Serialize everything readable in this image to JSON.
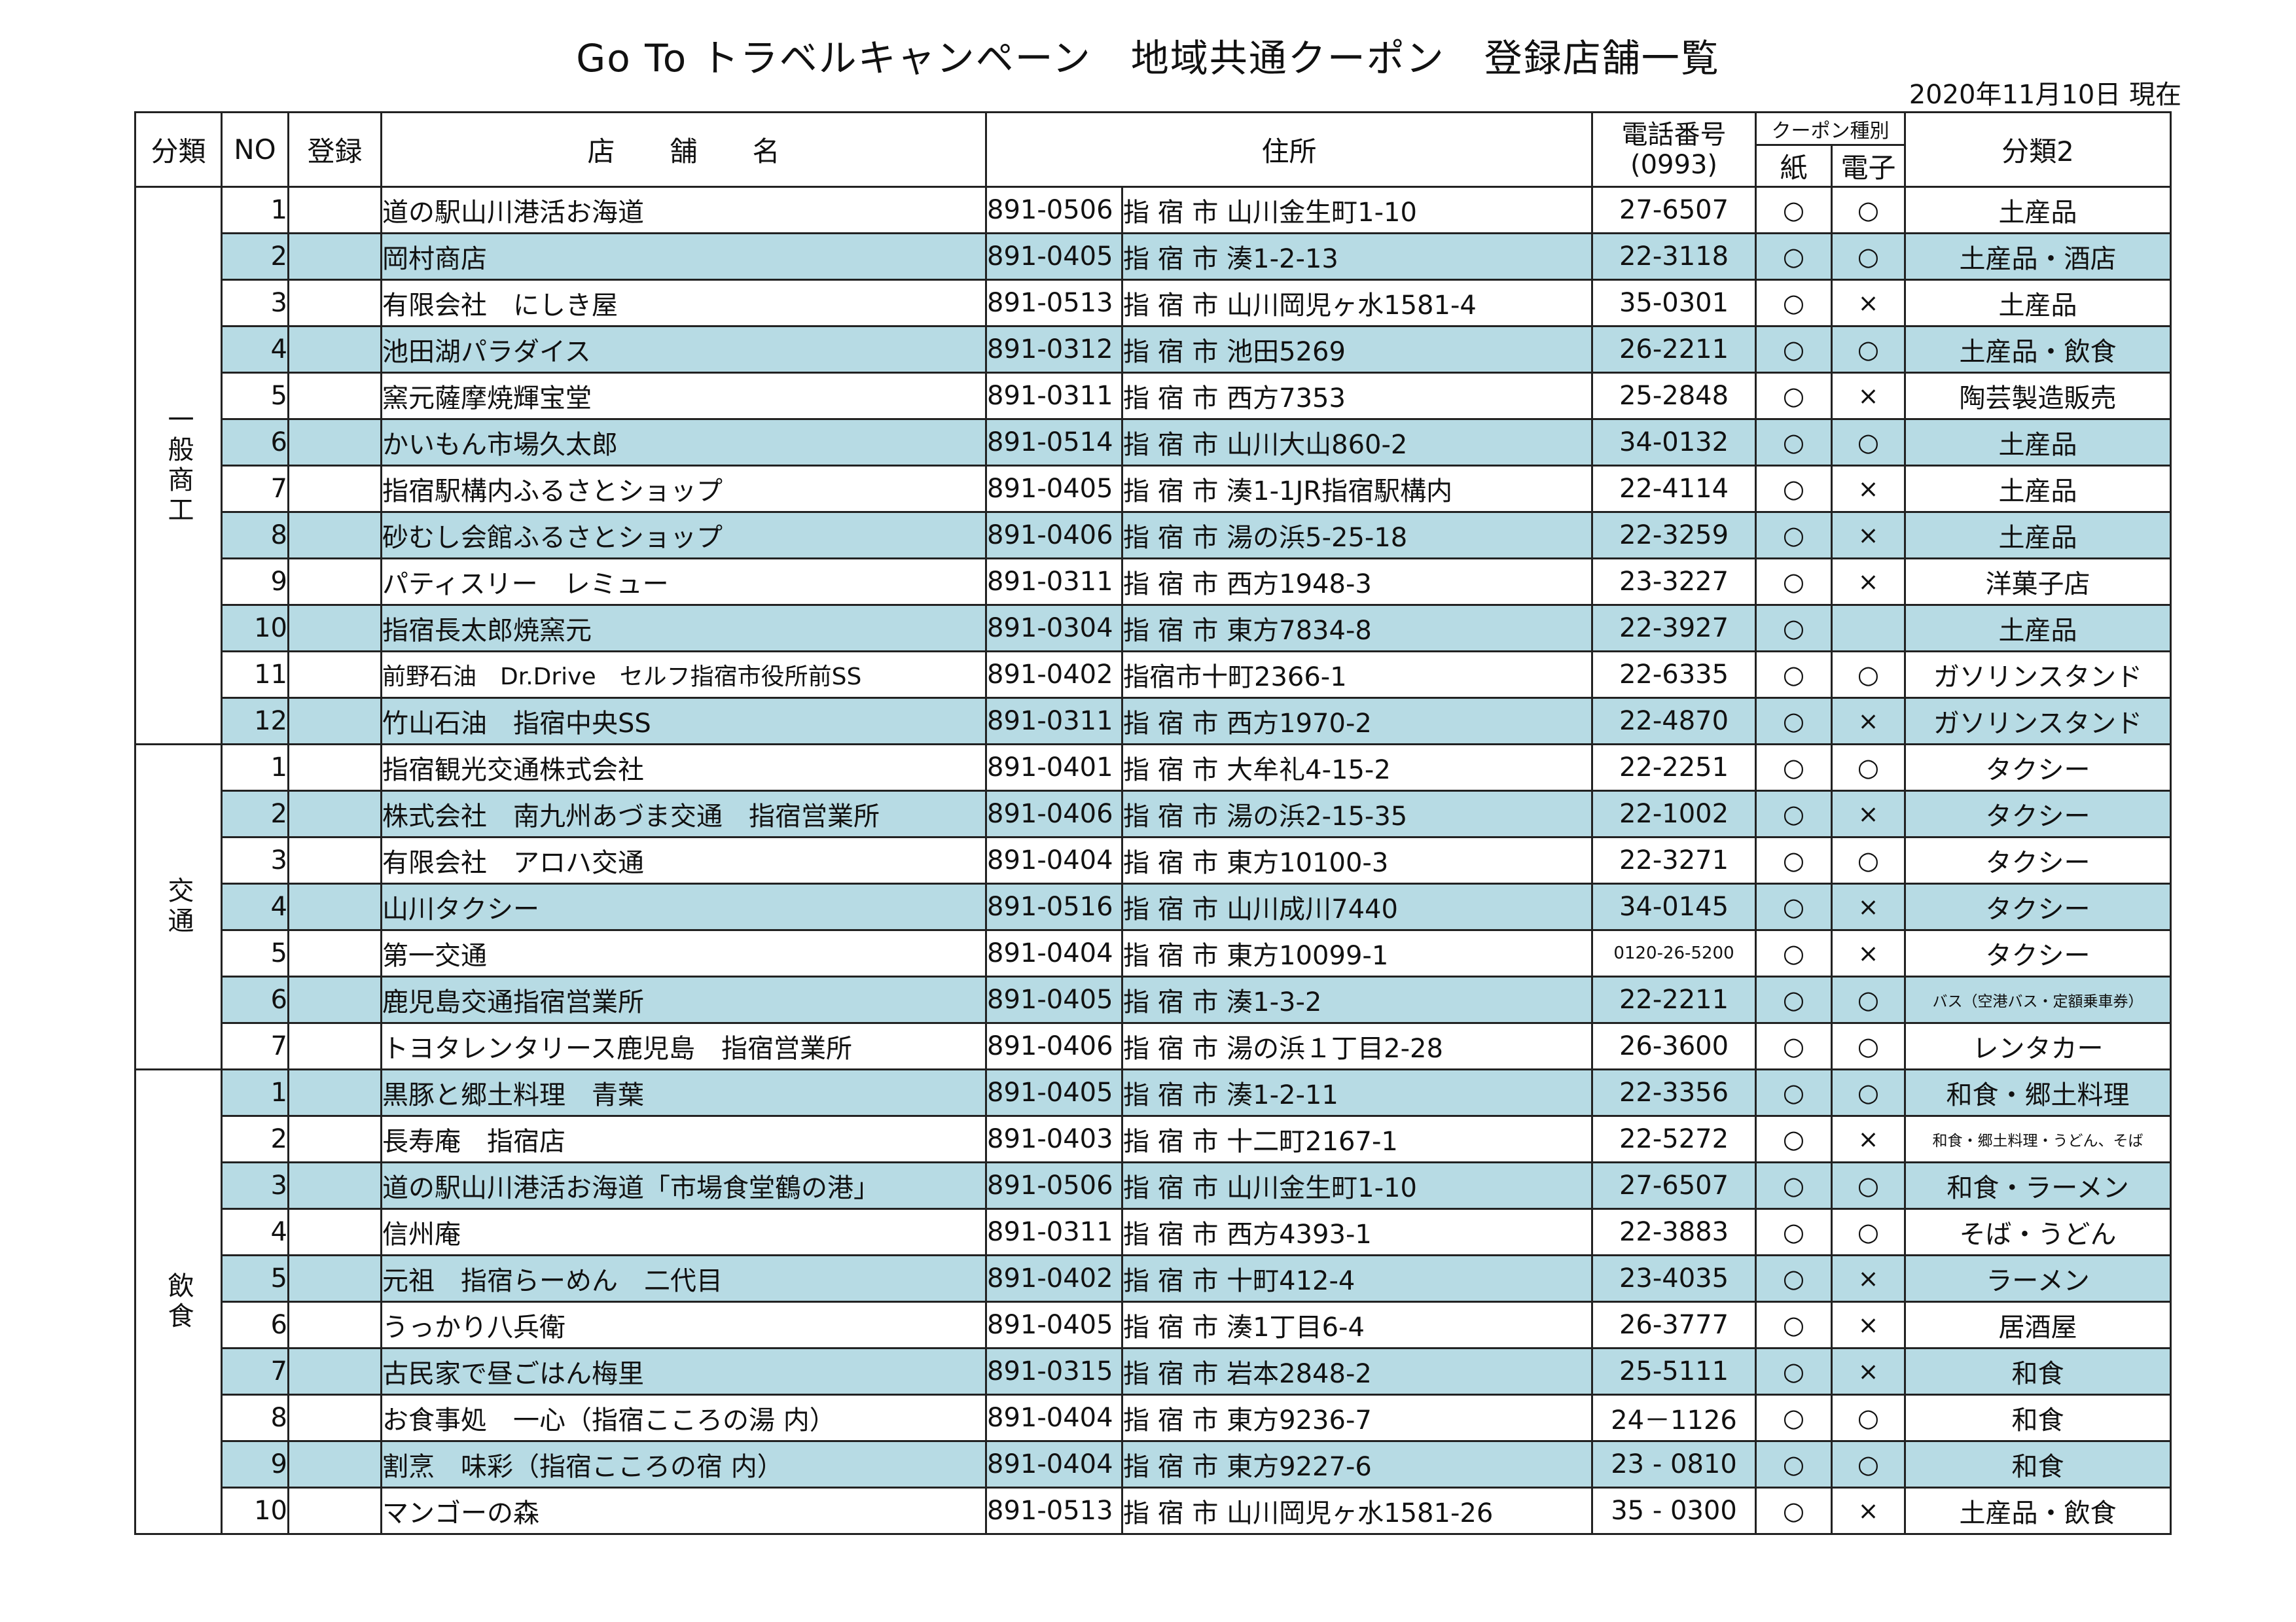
{
  "document": {
    "title": "Go To トラベルキャンペーン　地域共通クーポン　登録店舗一覧",
    "as_of": "2020年11月10日 現在"
  },
  "table": {
    "headers": {
      "category": "分類",
      "no": "NO",
      "registration": "登録",
      "name": "店　　舗　　名",
      "address": "住所",
      "phone": "電話番号",
      "phone_area": "(0993)",
      "coupon_type": "クーポン種別",
      "paper": "紙",
      "electronic": "電子",
      "category2": "分類2"
    },
    "groups": [
      {
        "label": "一般商工",
        "rows": [
          {
            "no": "1",
            "name": "道の駅山川港活お海道",
            "zip": "891-0506",
            "addr": "指 宿 市 山川金生町1-10",
            "tel": "27-6507",
            "paper": "○",
            "elec": "○",
            "cls": "土産品"
          },
          {
            "no": "2",
            "name": "岡村商店",
            "zip": "891-0405",
            "addr": "指 宿 市 湊1-2-13",
            "tel": "22-3118",
            "paper": "○",
            "elec": "○",
            "cls": "土産品・酒店"
          },
          {
            "no": "3",
            "name": "有限会社　にしき屋",
            "zip": "891-0513",
            "addr": "指 宿 市 山川岡児ヶ水1581-4",
            "tel": "35-0301",
            "paper": "○",
            "elec": "×",
            "cls": "土産品"
          },
          {
            "no": "4",
            "name": "池田湖パラダイス",
            "zip": "891-0312",
            "addr": "指 宿 市 池田5269",
            "tel": "26-2211",
            "paper": "○",
            "elec": "○",
            "cls": "土産品・飲食"
          },
          {
            "no": "5",
            "name": "窯元薩摩焼輝宝堂",
            "zip": "891-0311",
            "addr": "指 宿 市 西方7353",
            "tel": "25-2848",
            "paper": "○",
            "elec": "×",
            "cls": "陶芸製造販売"
          },
          {
            "no": "6",
            "name": "かいもん市場久太郎",
            "zip": "891-0514",
            "addr": "指 宿 市 山川大山860-2",
            "tel": "34-0132",
            "paper": "○",
            "elec": "○",
            "cls": "土産品"
          },
          {
            "no": "7",
            "name": "指宿駅構内ふるさとショップ",
            "zip": "891-0405",
            "addr": "指 宿 市 湊1-1JR指宿駅構内",
            "tel": "22-4114",
            "paper": "○",
            "elec": "×",
            "cls": "土産品"
          },
          {
            "no": "8",
            "name": "砂むし会館ふるさとショップ",
            "zip": "891-0406",
            "addr": "指 宿 市 湯の浜5-25-18",
            "tel": "22-3259",
            "paper": "○",
            "elec": "×",
            "cls": "土産品"
          },
          {
            "no": "9",
            "name": "パティスリー　レミュー",
            "zip": "891-0311",
            "addr": "指 宿 市 西方1948-3",
            "tel": "23-3227",
            "paper": "○",
            "elec": "×",
            "cls": "洋菓子店"
          },
          {
            "no": "10",
            "name": "指宿長太郎焼窯元",
            "zip": "891-0304",
            "addr": "指 宿 市 東方7834-8",
            "tel": "22-3927",
            "paper": "○",
            "elec": "",
            "cls": "土産品"
          },
          {
            "no": "11",
            "name": "前野石油　Dr.Drive　セルフ指宿市役所前SS",
            "zip": "891-0402",
            "addr": "指宿市十町2366-1",
            "tel": "22-6335",
            "paper": "○",
            "elec": "○",
            "cls": "ガソリンスタンド"
          },
          {
            "no": "12",
            "name": "竹山石油　指宿中央SS",
            "zip": "891-0311",
            "addr": "指 宿 市 西方1970-2",
            "tel": "22-4870",
            "paper": "○",
            "elec": "×",
            "cls": "ガソリンスタンド"
          }
        ]
      },
      {
        "label": "交通",
        "rows": [
          {
            "no": "1",
            "name": "指宿観光交通株式会社",
            "zip": "891-0401",
            "addr": "指 宿 市 大牟礼4-15-2",
            "tel": "22-2251",
            "paper": "○",
            "elec": "○",
            "cls": "タクシー"
          },
          {
            "no": "2",
            "name": "株式会社　南九州あづま交通　指宿営業所",
            "zip": "891-0406",
            "addr": "指 宿 市 湯の浜2-15-35",
            "tel": "22-1002",
            "paper": "○",
            "elec": "×",
            "cls": "タクシー"
          },
          {
            "no": "3",
            "name": "有限会社　アロハ交通",
            "zip": "891-0404",
            "addr": "指 宿 市 東方10100-3",
            "tel": "22-3271",
            "paper": "○",
            "elec": "○",
            "cls": "タクシー"
          },
          {
            "no": "4",
            "name": "山川タクシー",
            "zip": "891-0516",
            "addr": "指 宿 市 山川成川7440",
            "tel": "34-0145",
            "paper": "○",
            "elec": "×",
            "cls": "タクシー"
          },
          {
            "no": "5",
            "name": "第一交通",
            "zip": "891-0404",
            "addr": "指 宿 市 東方10099-1",
            "tel": "0120-26-5200",
            "paper": "○",
            "elec": "×",
            "cls": "タクシー"
          },
          {
            "no": "6",
            "name": "鹿児島交通指宿営業所",
            "zip": "891-0405",
            "addr": "指 宿 市 湊1-3-2",
            "tel": "22-2211",
            "paper": "○",
            "elec": "○",
            "cls": "バス（空港バス・定額乗車券）"
          },
          {
            "no": "7",
            "name": "トヨタレンタリース鹿児島　指宿営業所",
            "zip": "891-0406",
            "addr": "指 宿 市 湯の浜１丁目2-28",
            "tel": "26-3600",
            "paper": "○",
            "elec": "○",
            "cls": "レンタカー"
          }
        ]
      },
      {
        "label": "飲食",
        "rows": [
          {
            "no": "1",
            "name": "黒豚と郷土料理　青葉",
            "zip": "891-0405",
            "addr": "指 宿 市 湊1-2-11",
            "tel": "22-3356",
            "paper": "○",
            "elec": "○",
            "cls": "和食・郷土料理"
          },
          {
            "no": "2",
            "name": "長寿庵　指宿店",
            "zip": "891-0403",
            "addr": "指 宿 市 十二町2167-1",
            "tel": "22-5272",
            "paper": "○",
            "elec": "×",
            "cls": "和食・郷土料理・うどん、そば"
          },
          {
            "no": "3",
            "name": "道の駅山川港活お海道「市場食堂鶴の港」",
            "zip": "891-0506",
            "addr": "指 宿 市 山川金生町1-10",
            "tel": "27-6507",
            "paper": "○",
            "elec": "○",
            "cls": "和食・ラーメン"
          },
          {
            "no": "4",
            "name": "信州庵",
            "zip": "891-0311",
            "addr": "指 宿 市 西方4393-1",
            "tel": "22-3883",
            "paper": "○",
            "elec": "○",
            "cls": "そば・うどん"
          },
          {
            "no": "5",
            "name": "元祖　指宿らーめん　二代目",
            "zip": "891-0402",
            "addr": "指 宿 市 十町412-4",
            "tel": "23-4035",
            "paper": "○",
            "elec": "×",
            "cls": "ラーメン"
          },
          {
            "no": "6",
            "name": "うっかり八兵衛",
            "zip": "891-0405",
            "addr": "指 宿 市 湊1丁目6-4",
            "tel": "26-3777",
            "paper": "○",
            "elec": "×",
            "cls": "居酒屋"
          },
          {
            "no": "7",
            "name": "古民家で昼ごはん梅里",
            "zip": "891-0315",
            "addr": "指 宿 市 岩本2848-2",
            "tel": "25-5111",
            "paper": "○",
            "elec": "×",
            "cls": "和食"
          },
          {
            "no": "8",
            "name": "お食事処　一心（指宿こころの湯 内）",
            "zip": "891-0404",
            "addr": "指 宿 市 東方9236-7",
            "tel": "24－1126",
            "paper": "○",
            "elec": "○",
            "cls": "和食"
          },
          {
            "no": "9",
            "name": "割烹　味彩（指宿こころの宿 内）",
            "zip": "891-0404",
            "addr": "指 宿 市 東方9227-6",
            "tel": "23 - 0810",
            "paper": "○",
            "elec": "○",
            "cls": "和食"
          },
          {
            "no": "10",
            "name": "マンゴーの森",
            "zip": "891-0513",
            "addr": "指 宿 市 山川岡児ヶ水1581-26",
            "tel": "35 - 0300",
            "paper": "○",
            "elec": "×",
            "cls": "土産品・飲食"
          }
        ]
      }
    ]
  },
  "colors": {
    "row_shade": "#b7dbe4",
    "grid": "#222222"
  }
}
